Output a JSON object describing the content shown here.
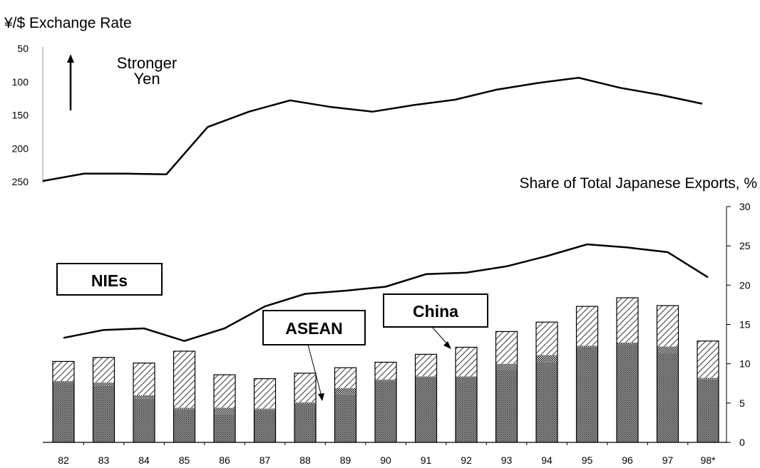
{
  "chart_data": [
    {
      "type": "line",
      "title": "¥/$ Exchange Rate",
      "annotation": "Stronger\nYen",
      "y_ticks": [
        50,
        100,
        150,
        200,
        250
      ],
      "ylim": [
        250,
        50
      ],
      "y_inverted": true,
      "grid": false,
      "series": [
        {
          "values": [
            249,
            238,
            238,
            239,
            168,
            145,
            128,
            138,
            145,
            135,
            127,
            112,
            102,
            94,
            109,
            120,
            133
          ]
        }
      ]
    },
    {
      "type": "bar",
      "title": "Share of Total Japanese Exports, %",
      "x_tick_labels": [
        "82",
        "83",
        "84",
        "85",
        "86",
        "87",
        "88",
        "89",
        "90",
        "91",
        "92",
        "93",
        "94",
        "95",
        "96",
        "97",
        "98*"
      ],
      "y_ticks": [
        0,
        5,
        10,
        15,
        20,
        25,
        30
      ],
      "ylim": [
        0,
        30
      ],
      "y_axis_position": "right",
      "grid": false,
      "stacked": true,
      "labels": {
        "nies": "NIEs",
        "asean": "ASEAN",
        "china": "China"
      },
      "series": [
        {
          "name": "ASEAN",
          "values": [
            7.6,
            7.2,
            5.6,
            4.2,
            3.6,
            4.1,
            4.9,
            6.1,
            7.8,
            8.2,
            8.2,
            9.2,
            10.2,
            12.1,
            12.5,
            11.4,
            8.0
          ]
        },
        {
          "name": "China",
          "values": [
            0.2,
            0.4,
            0.4,
            0.2,
            0.8,
            0.2,
            0.2,
            0.8,
            0.2,
            0.2,
            0.2,
            0.8,
            0.9,
            0.2,
            0.2,
            0.8,
            0.2
          ]
        },
        {
          "name": "NIEs",
          "values": [
            2.5,
            3.2,
            4.1,
            7.2,
            4.2,
            3.8,
            3.7,
            2.6,
            2.2,
            2.8,
            3.7,
            4.1,
            4.2,
            5.0,
            5.7,
            5.2,
            4.7
          ]
        }
      ],
      "line": {
        "name": "NIEs",
        "values": [
          13.3,
          14.3,
          14.5,
          12.9,
          14.5,
          17.3,
          18.9,
          19.3,
          19.8,
          21.4,
          21.6,
          22.4,
          23.7,
          25.2,
          24.8,
          24.2,
          21.0
        ]
      }
    }
  ]
}
